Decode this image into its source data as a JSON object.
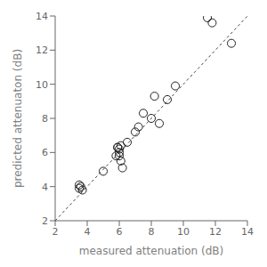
{
  "chart_data": {
    "type": "scatter",
    "xlabel": "measured attenuation (dB)",
    "ylabel": "predicted attenuaton (dB)",
    "xlim": [
      2,
      14
    ],
    "ylim": [
      2,
      14
    ],
    "xticks": [
      2,
      4,
      6,
      8,
      10,
      12,
      14
    ],
    "yticks": [
      2,
      4,
      6,
      8,
      10,
      12,
      14
    ],
    "grid": false,
    "series": [
      {
        "type": "line",
        "line_style": "dotted",
        "color": "#444444",
        "x": [
          2,
          14
        ],
        "values": [
          2,
          14
        ]
      },
      {
        "type": "scatter",
        "marker": "circle",
        "color": "#222222",
        "x": [
          3.5,
          3.5,
          3.6,
          3.7,
          5.0,
          5.8,
          5.9,
          5.9,
          6.0,
          6.0,
          6.0,
          6.1,
          6.1,
          6.2,
          6.5,
          7.0,
          7.2,
          7.5,
          8.0,
          8.2,
          8.5,
          9.0,
          9.5,
          11.5,
          11.8,
          13.0
        ],
        "values": [
          4.1,
          3.9,
          4.0,
          3.8,
          4.9,
          5.8,
          6.3,
          6.3,
          6.2,
          6.0,
          5.8,
          5.5,
          6.4,
          5.1,
          6.6,
          7.2,
          7.5,
          8.3,
          8.0,
          9.3,
          7.7,
          9.1,
          9.9,
          13.9,
          13.6,
          12.4
        ]
      }
    ]
  }
}
